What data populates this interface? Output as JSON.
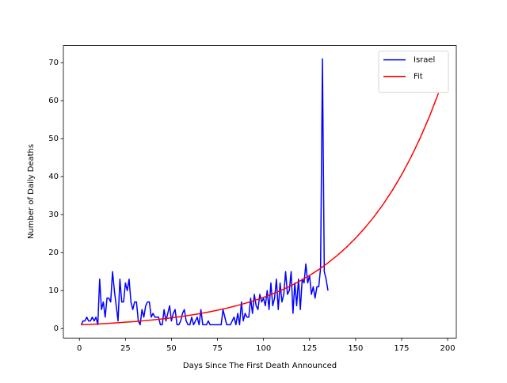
{
  "chart_data": {
    "type": "line",
    "xlabel": "Days Since The First Death Announced",
    "ylabel": "Number of Daily Deaths",
    "xlim": [
      -8.7,
      204.7
    ],
    "ylim": [
      -2.5,
      74.5
    ],
    "xticks": [
      0,
      25,
      50,
      75,
      100,
      125,
      150,
      175,
      200
    ],
    "yticks": [
      0,
      10,
      20,
      30,
      40,
      50,
      60,
      70
    ],
    "grid": false,
    "legend": "upper right",
    "series": [
      {
        "name": "Israel",
        "color": "#0000ff",
        "x": [
          1,
          2,
          3,
          4,
          5,
          6,
          7,
          8,
          9,
          10,
          11,
          12,
          13,
          14,
          15,
          16,
          17,
          18,
          19,
          20,
          21,
          22,
          23,
          24,
          25,
          26,
          27,
          28,
          29,
          30,
          31,
          32,
          33,
          34,
          35,
          36,
          37,
          38,
          39,
          40,
          41,
          42,
          43,
          44,
          45,
          46,
          47,
          48,
          49,
          50,
          51,
          52,
          53,
          54,
          55,
          56,
          57,
          58,
          59,
          60,
          61,
          62,
          63,
          64,
          65,
          66,
          67,
          68,
          69,
          70,
          71,
          72,
          73,
          74,
          75,
          76,
          77,
          78,
          79,
          80,
          81,
          82,
          83,
          84,
          85,
          86,
          87,
          88,
          89,
          90,
          91,
          92,
          93,
          94,
          95,
          96,
          97,
          98,
          99,
          100,
          101,
          102,
          103,
          104,
          105,
          106,
          107,
          108,
          109,
          110,
          111,
          112,
          113,
          114,
          115,
          116,
          117,
          118,
          119,
          120,
          121,
          122,
          123,
          124,
          125,
          126,
          127,
          128,
          129,
          130,
          131,
          132,
          133,
          134,
          135
        ],
        "values": [
          1,
          2,
          2,
          3,
          2,
          2,
          3,
          2,
          3,
          1,
          13,
          5,
          7,
          3,
          8,
          8,
          7,
          15,
          10,
          6,
          2,
          13,
          7,
          7,
          12,
          10,
          13,
          7,
          5,
          7,
          7,
          2,
          1,
          5,
          3,
          6,
          7,
          7,
          3,
          4,
          3,
          3,
          3,
          1,
          1,
          5,
          2,
          4,
          6,
          2,
          4,
          5,
          1,
          1,
          2,
          4,
          5,
          2,
          1,
          1,
          3,
          1,
          2,
          3,
          1,
          5,
          1,
          1,
          1,
          2,
          1,
          1,
          1,
          1,
          1,
          1,
          1,
          5,
          3,
          1,
          1,
          1,
          2,
          3,
          1,
          4,
          1,
          7,
          2,
          4,
          3,
          3,
          8,
          4,
          9,
          6,
          5,
          9,
          7,
          8,
          6,
          10,
          5,
          12,
          6,
          8,
          13,
          5,
          12,
          7,
          9,
          15,
          9,
          10,
          15,
          4,
          12,
          6,
          13,
          5,
          13,
          12,
          17,
          12,
          14,
          9,
          11,
          8,
          11,
          11,
          16,
          71,
          15,
          13,
          10
        ]
      },
      {
        "name": "Fit",
        "color": "#ff0000",
        "x": [
          1,
          5,
          10,
          15,
          20,
          25,
          30,
          35,
          40,
          45,
          50,
          55,
          60,
          65,
          70,
          75,
          80,
          85,
          90,
          95,
          100,
          105,
          110,
          115,
          120,
          125,
          130,
          135,
          140,
          145,
          150,
          155,
          160,
          165,
          170,
          175,
          180,
          185,
          190,
          195
        ],
        "values": [
          1.0,
          1.09,
          1.21,
          1.35,
          1.5,
          1.67,
          1.85,
          2.06,
          2.29,
          2.55,
          2.84,
          3.15,
          3.51,
          3.9,
          4.34,
          4.83,
          5.37,
          5.97,
          6.64,
          7.38,
          8.21,
          9.14,
          10.16,
          11.3,
          12.57,
          13.98,
          15.55,
          17.29,
          19.23,
          21.39,
          23.79,
          26.46,
          29.43,
          32.73,
          36.41,
          40.49,
          45.03,
          50.09,
          55.7,
          61.96
        ]
      }
    ]
  }
}
